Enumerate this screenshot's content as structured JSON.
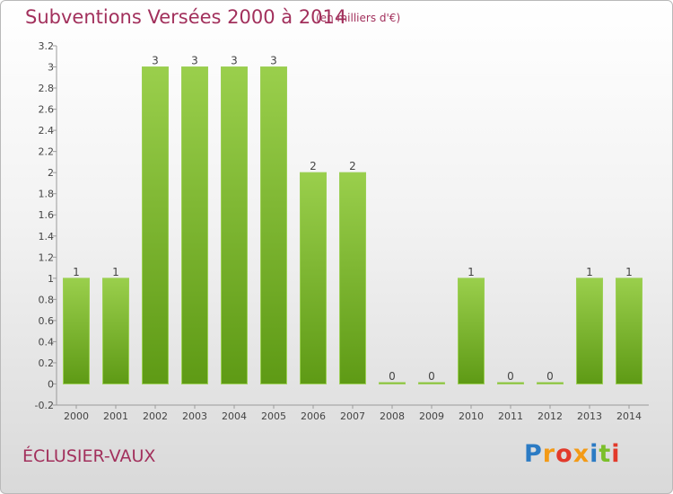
{
  "header": {
    "title": "Subventions Versées 2000 à 2014",
    "subtitle": "(en milliers d'€)"
  },
  "footer": {
    "commune": "ÉCLUSIER-VAUX",
    "logo": "Proxiti"
  },
  "colors": {
    "title": "#a2305c",
    "bar_top": "#9acf4c",
    "bar_bottom": "#5e9a15",
    "bar_stroke": "#9ccf55",
    "logo_letters": [
      "#2b7bc4",
      "#f39a16",
      "#e23a2b",
      "#f39a16",
      "#2b7bc4",
      "#7bbf2a",
      "#e23a2b"
    ]
  },
  "chart_data": {
    "type": "bar",
    "title": "Subventions Versées 2000 à 2014",
    "subtitle": "(en milliers d'€)",
    "categories": [
      "2000",
      "2001",
      "2002",
      "2003",
      "2004",
      "2005",
      "2006",
      "2007",
      "2008",
      "2009",
      "2010",
      "2011",
      "2012",
      "2013",
      "2014"
    ],
    "values": [
      1,
      1,
      3,
      3,
      3,
      3,
      2,
      2,
      0,
      0,
      1,
      0,
      0,
      1,
      1
    ],
    "data_labels": [
      "1",
      "1",
      "3",
      "3",
      "3",
      "3",
      "2",
      "2",
      "0",
      "0",
      "1",
      "0",
      "0",
      "1",
      "1"
    ],
    "yticks": [
      "-0.2",
      "0",
      "0.2",
      "0.4",
      "0.6",
      "0.8",
      "1",
      "1.2",
      "1.4",
      "1.6",
      "1.8",
      "2",
      "2.2",
      "2.4",
      "2.6",
      "2.8",
      "3",
      "3.2"
    ],
    "ylim": [
      -0.2,
      3.2
    ],
    "grid": false,
    "legend": "none"
  }
}
